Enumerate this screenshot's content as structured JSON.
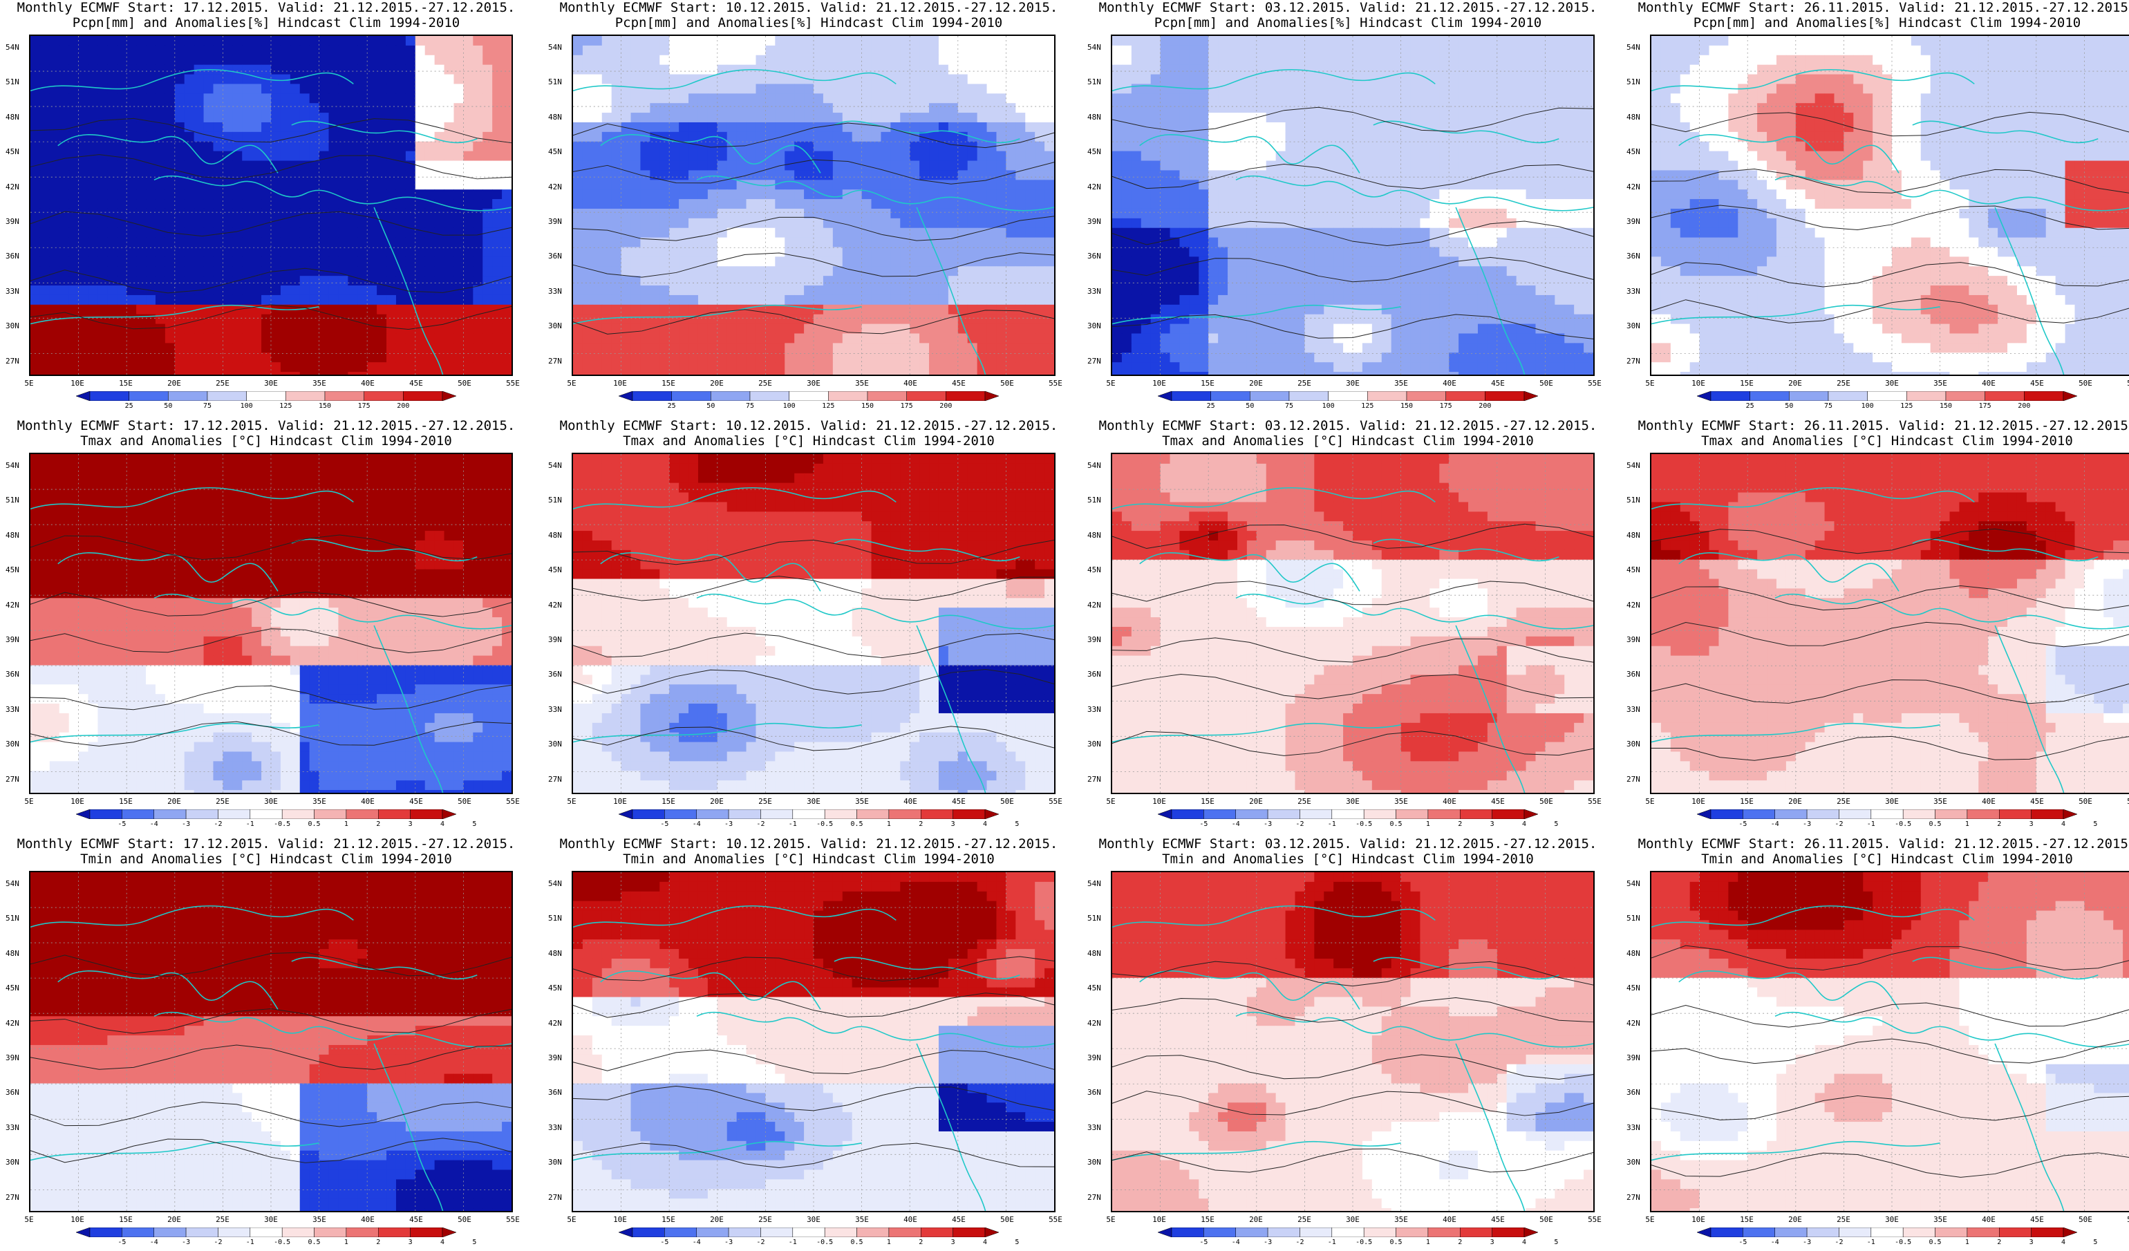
{
  "lat_labels": [
    "54N",
    "51N",
    "48N",
    "45N",
    "42N",
    "39N",
    "36N",
    "33N",
    "30N",
    "27N"
  ],
  "lon_labels": [
    "5E",
    "10E",
    "15E",
    "20E",
    "25E",
    "30E",
    "35E",
    "40E",
    "45E",
    "50E",
    "55E"
  ],
  "colorbars": {
    "precip": {
      "ticks": [
        "25",
        "50",
        "75",
        "100",
        "125",
        "150",
        "175",
        "200"
      ],
      "colors": [
        "#0a14a8",
        "#1f3fe0",
        "#4d72f0",
        "#8fa6f2",
        "#c9d2f7",
        "#ffffff",
        "#f7c5c5",
        "#ef8a8a",
        "#e64545",
        "#cc1010",
        "#a00000"
      ]
    },
    "temp": {
      "ticks": [
        "-5",
        "-4",
        "-3",
        "-2",
        "-1",
        "-0.5",
        "0.5",
        "1",
        "2",
        "3",
        "4",
        "5"
      ],
      "colors": [
        "#0a14a8",
        "#1f3fe0",
        "#4d72f0",
        "#8fa6f2",
        "#c9d2f7",
        "#e7ebfb",
        "#ffffff",
        "#fbe3e3",
        "#f4b3b3",
        "#ec7474",
        "#e33a3a",
        "#c80f0f",
        "#a00000"
      ]
    }
  },
  "rows": [
    {
      "variable": "precip",
      "panels": [
        {
          "title1": "Monthly ECMWF Start: 17.12.2015. Valid: 21.12.2015.-27.12.2015.",
          "title2": "Pcpn[mm] and Anomalies[%] Hindcast Clim 1994-2010",
          "scheme": "dry"
        },
        {
          "title1": "Monthly ECMWF Start: 10.12.2015. Valid: 21.12.2015.-27.12.2015.",
          "title2": "Pcpn[mm] and Anomalies[%] Hindcast Clim 1994-2010",
          "scheme": "drymix"
        },
        {
          "title1": "Monthly ECMWF Start: 03.12.2015. Valid: 21.12.2015.-27.12.2015.",
          "title2": "Pcpn[mm] and Anomalies[%] Hindcast Clim 1994-2010",
          "scheme": "mix"
        },
        {
          "title1": "Monthly ECMWF Start: 26.11.2015. Valid: 21.12.2015.-27.12.2015.",
          "title2": "Pcpn[mm] and Anomalies[%] Hindcast Clim 1994-2010",
          "scheme": "mix2"
        }
      ]
    },
    {
      "variable": "temp",
      "panels": [
        {
          "title1": "Monthly ECMWF Start: 17.12.2015. Valid: 21.12.2015.-27.12.2015.",
          "title2": "Tmax and Anomalies [°C] Hindcast Clim 1994-2010",
          "scheme": "warm1"
        },
        {
          "title1": "Monthly ECMWF Start: 10.12.2015. Valid: 21.12.2015.-27.12.2015.",
          "title2": "Tmax and Anomalies [°C] Hindcast Clim 1994-2010",
          "scheme": "warm2"
        },
        {
          "title1": "Monthly ECMWF Start: 03.12.2015. Valid: 21.12.2015.-27.12.2015.",
          "title2": "Tmax and Anomalies [°C] Hindcast Clim 1994-2010",
          "scheme": "warm3"
        },
        {
          "title1": "Monthly ECMWF Start: 26.11.2015. Valid: 21.12.2015.-27.12.2015.",
          "title2": "Tmax and Anomalies [°C] Hindcast Clim 1994-2010",
          "scheme": "warm3"
        }
      ]
    },
    {
      "variable": "temp",
      "panels": [
        {
          "title1": "Monthly ECMWF Start: 17.12.2015. Valid: 21.12.2015.-27.12.2015.",
          "title2": "Tmin and Anomalies [°C] Hindcast Clim 1994-2010",
          "scheme": "warm1"
        },
        {
          "title1": "Monthly ECMWF Start: 10.12.2015. Valid: 21.12.2015.-27.12.2015.",
          "title2": "Tmin and Anomalies [°C] Hindcast Clim 1994-2010",
          "scheme": "warm2"
        },
        {
          "title1": "Monthly ECMWF Start: 03.12.2015. Valid: 21.12.2015.-27.12.2015.",
          "title2": "Tmin and Anomalies [°C] Hindcast Clim 1994-2010",
          "scheme": "warm3"
        },
        {
          "title1": "Monthly ECMWF Start: 26.11.2015. Valid: 21.12.2015.-27.12.2015.",
          "title2": "Tmin and Anomalies [°C] Hindcast Clim 1994-2010",
          "scheme": "warm3"
        }
      ]
    }
  ]
}
